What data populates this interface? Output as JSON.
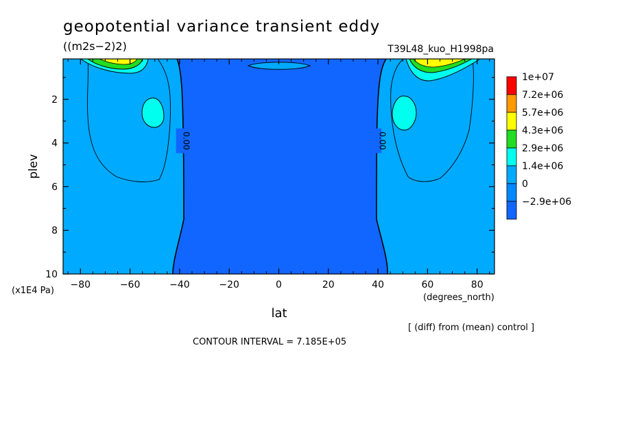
{
  "chart_data": {
    "type": "heatmap",
    "title": "geopotential variance transient eddy",
    "units": "((m2s−2)2)",
    "experiment": "T39L48_kuo_H1998pa",
    "xlabel": "lat",
    "xunits": "(degrees_north)",
    "ylabel": "plev",
    "yunits": "(x1E4 Pa)",
    "xlim": [
      -87,
      87
    ],
    "ylim": [
      10,
      0.15
    ],
    "x_ticks": [
      -80,
      -60,
      -40,
      -20,
      0,
      20,
      40,
      60,
      80
    ],
    "x_tick_labels": [
      "−80",
      "−60",
      "−40",
      "−20",
      "0",
      "20",
      "40",
      "60",
      "80"
    ],
    "y_ticks": [
      2,
      4,
      6,
      8,
      10
    ],
    "y_tick_labels": [
      "2",
      "4",
      "6",
      "8",
      "10"
    ],
    "contour_labels": [
      {
        "text": "0.00",
        "lat": -39.5,
        "plev": 3.9
      },
      {
        "text": "0.00",
        "lat": 39.5,
        "plev": 3.9
      }
    ],
    "legend": {
      "levels": [
        "1e+07",
        "7.2e+06",
        "5.7e+06",
        "4.3e+06",
        "2.9e+06",
        "1.4e+06",
        "0",
        "−2.9e+06"
      ],
      "colors": [
        "#ff0000",
        "#ff9900",
        "#ffff00",
        "#22dd22",
        "#00ffee",
        "#00aaff",
        "#0088ff",
        "#1166ff"
      ]
    },
    "colors": {
      "negative_fill": "#1166ff",
      "low_fill": "#00aaff",
      "mid_fill": "#00ffee",
      "green_fill": "#22dd22",
      "yellow_fill": "#ffff00"
    },
    "note": "[ (diff) from (mean) control ]",
    "contour_interval": "CONTOUR INTERVAL = 7.185E+05"
  }
}
